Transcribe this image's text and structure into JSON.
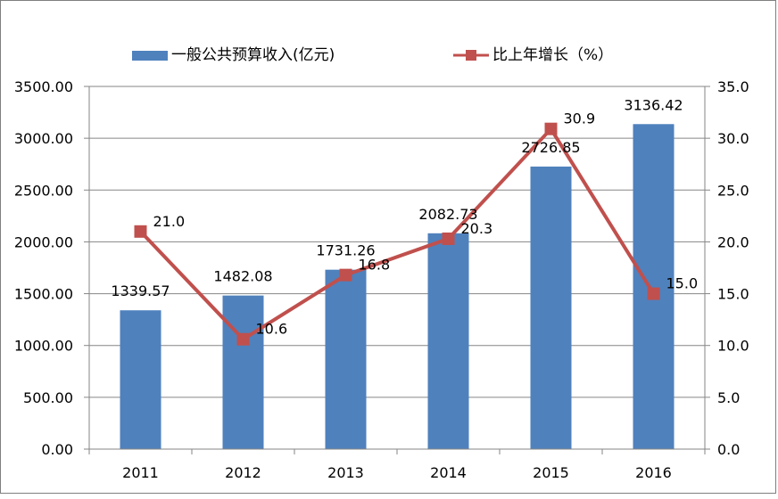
{
  "chart_data": {
    "type": "bar",
    "categories": [
      "2011",
      "2012",
      "2013",
      "2014",
      "2015",
      "2016"
    ],
    "series": [
      {
        "name": "一般公共预算收入(亿元)",
        "type": "bar",
        "axis": "left",
        "color": "#4F81BD",
        "values": [
          1339.57,
          1482.08,
          1731.26,
          2082.73,
          2726.85,
          3136.42
        ],
        "labels": [
          "1339.57",
          "1482.08",
          "1731.26",
          "2082.73",
          "2726.85",
          "3136.42"
        ]
      },
      {
        "name": "比上年增长（%）",
        "type": "line",
        "axis": "right",
        "color": "#C0504D",
        "values": [
          21.0,
          10.6,
          16.8,
          20.3,
          30.9,
          15.0
        ],
        "labels": [
          "21.0",
          "10.6",
          "16.8",
          "20.3",
          "30.9",
          "15.0"
        ]
      }
    ],
    "y_left": {
      "ylim": [
        0,
        3500
      ],
      "ticks": [
        "0.00",
        "500.00",
        "1000.00",
        "1500.00",
        "2000.00",
        "2500.00",
        "3000.00",
        "3500.00"
      ]
    },
    "y_right": {
      "ylim": [
        0,
        35
      ],
      "ticks": [
        "0.0",
        "5.0",
        "10.0",
        "15.0",
        "20.0",
        "25.0",
        "30.0",
        "35.0"
      ]
    },
    "grid": true,
    "legend": "top"
  }
}
